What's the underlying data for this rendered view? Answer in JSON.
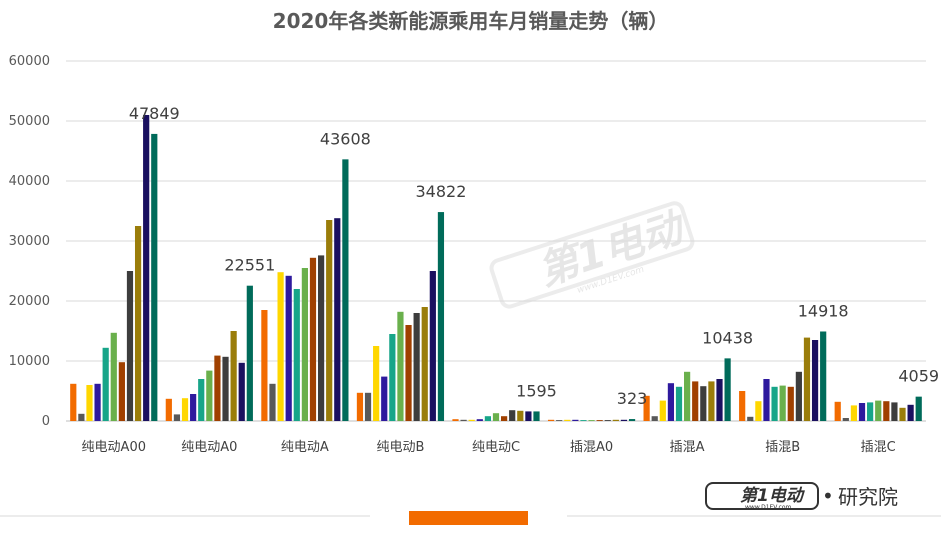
{
  "chart_data": {
    "type": "bar",
    "title": "2020年各类新能源乘用车月销量走势（辆）",
    "categories": [
      "纯电动A00",
      "纯电动A0",
      "纯电动A",
      "纯电动B",
      "纯电动C",
      "插混A0",
      "插混A",
      "插混B",
      "插混C"
    ],
    "ylim": [
      0,
      60000
    ],
    "yticks": [
      "0",
      "10000",
      "20000",
      "30000",
      "40000",
      "50000",
      "60000"
    ],
    "grid": true,
    "legend": "none",
    "series": [
      {
        "color": "#f26b00",
        "values": [
          6200,
          3700,
          18500,
          4700,
          300,
          200,
          4200,
          5000,
          3200
        ]
      },
      {
        "color": "#595959",
        "values": [
          1200,
          1100,
          6200,
          4700,
          200,
          150,
          800,
          700,
          500
        ]
      },
      {
        "color": "#ffd700",
        "values": [
          6000,
          3800,
          24800,
          12500,
          200,
          200,
          3400,
          3300,
          2600
        ]
      },
      {
        "color": "#2e1a9e",
        "values": [
          6200,
          4500,
          24200,
          7400,
          300,
          200,
          6300,
          7000,
          3000
        ]
      },
      {
        "color": "#17a589",
        "values": [
          12200,
          7000,
          22000,
          14500,
          800,
          150,
          5700,
          5700,
          3100
        ]
      },
      {
        "color": "#6ab04c",
        "values": [
          14700,
          8400,
          25500,
          18200,
          1300,
          150,
          8200,
          5900,
          3400
        ]
      },
      {
        "color": "#a04000",
        "values": [
          9800,
          10900,
          27200,
          16000,
          800,
          150,
          6600,
          5700,
          3300
        ]
      },
      {
        "color": "#3d3d3d",
        "values": [
          25000,
          10700,
          27600,
          18000,
          1800,
          150,
          5800,
          8200,
          3100
        ]
      },
      {
        "color": "#9a7d0a",
        "values": [
          32500,
          15000,
          33500,
          19000,
          1700,
          200,
          6600,
          13900,
          2200
        ]
      },
      {
        "color": "#1a1060",
        "values": [
          51000,
          9700,
          33800,
          25000,
          1600,
          200,
          7000,
          13500,
          2700
        ]
      },
      {
        "color": "#006b5a",
        "values": [
          47849,
          22551,
          43608,
          34822,
          1595,
          323,
          10438,
          14918,
          4059
        ]
      }
    ],
    "data_labels": [
      "47849",
      "22551",
      "43608",
      "34822",
      "1595",
      "323",
      "10438",
      "14918",
      "4059"
    ]
  },
  "watermark": {
    "text": "第1电动",
    "url": "www.D1EV.com"
  },
  "footer": {
    "brand": "第1电动",
    "brand_url": "www.D1EV.com",
    "separator": "•",
    "institute": "研究院"
  },
  "colors": {
    "grid": "#d9d9d9",
    "footer_bar": "#f26b00",
    "footer_line": "#d9d9d9"
  }
}
